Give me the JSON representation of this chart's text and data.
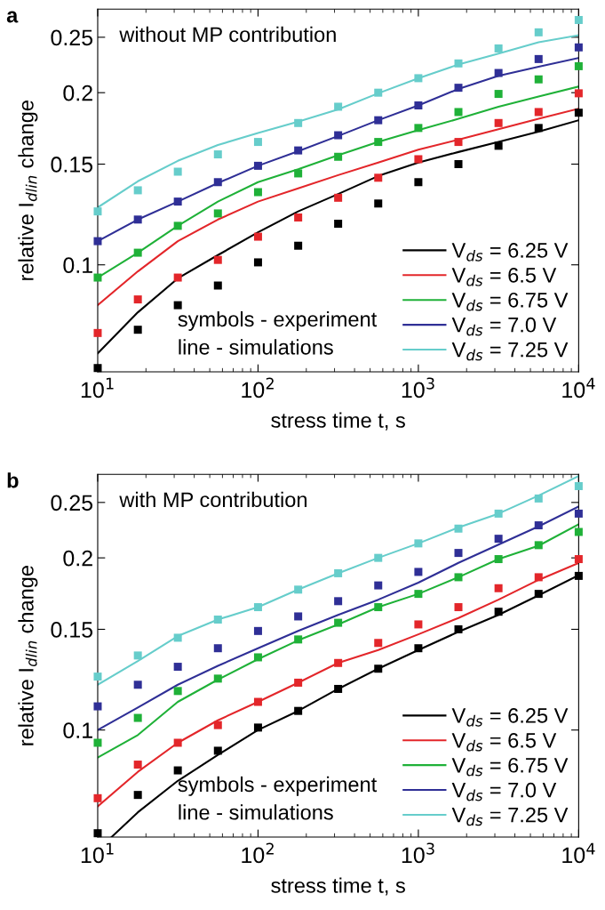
{
  "chart_data": [
    {
      "type": "line",
      "title": "a",
      "xlabel": "stress time t, s",
      "ylabel": "relative I$_{dlin}$ change",
      "log": "xy",
      "legend": "bottom right",
      "xlim": [
        10,
        10000
      ],
      "ylim": [
        0.065,
        0.28
      ],
      "xticks": [
        {
          "value": 10,
          "label": "10$^{1}$"
        },
        {
          "value": 100,
          "label": "10$^{2}$"
        },
        {
          "value": 1000,
          "label": "10$^{3}$"
        },
        {
          "value": 10000,
          "label": "10$^{4}$"
        }
      ],
      "yticks": [
        0.1,
        0.15,
        0.2,
        0.25
      ],
      "annotations": [
        "without MP contribution",
        "symbols - experiment",
        "line - simulations"
      ],
      "x": [
        10,
        17.8,
        31.6,
        56.2,
        100,
        178,
        316,
        562,
        1000,
        1778,
        3162,
        5623,
        10000
      ],
      "series": [
        {
          "name": "V$_{ds}$ = 6.25 V",
          "type": "line",
          "color": "#000000",
          "values": [
            0.07,
            0.0826,
            0.0947,
            0.104,
            0.114,
            0.124,
            0.133,
            0.143,
            0.151,
            0.1575,
            0.164,
            0.171,
            0.179
          ]
        },
        {
          "name": "V$_{ds}$ = 6.5 V",
          "type": "line",
          "color": "#e3262a",
          "values": [
            0.085,
            0.0974,
            0.11,
            0.12,
            0.129,
            0.136,
            0.1435,
            0.151,
            0.159,
            0.1655,
            0.1727,
            0.18,
            0.1875
          ]
        },
        {
          "name": "V$_{ds}$ = 6.75 V",
          "type": "line",
          "color": "#1fb138",
          "values": [
            0.095,
            0.105,
            0.117,
            0.129,
            0.1395,
            0.147,
            0.1555,
            0.164,
            0.172,
            0.18,
            0.189,
            0.197,
            0.205
          ]
        },
        {
          "name": "V$_{ds}$ = 7.0 V",
          "type": "line",
          "color": "#2f2f96",
          "values": [
            0.11,
            0.12,
            0.129,
            0.139,
            0.149,
            0.158,
            0.168,
            0.179,
            0.19,
            0.203,
            0.214,
            0.222,
            0.23
          ]
        },
        {
          "name": "V$_{ds}$ = 7.25 V",
          "type": "line",
          "color": "#66cdcb",
          "values": [
            0.126,
            0.14,
            0.152,
            0.162,
            0.17,
            0.178,
            0.187,
            0.1995,
            0.212,
            0.224,
            0.234,
            0.245,
            0.252
          ]
        },
        {
          "type": "scatter",
          "marker": "square",
          "color": "#000000",
          "values": [
            0.066,
            0.077,
            0.085,
            0.092,
            0.101,
            0.108,
            0.118,
            0.128,
            0.1395,
            0.15,
            0.1615,
            0.1735,
            0.1845
          ]
        },
        {
          "type": "scatter",
          "marker": "square",
          "color": "#e3262a",
          "values": [
            0.076,
            0.087,
            0.095,
            0.102,
            0.112,
            0.121,
            0.131,
            0.142,
            0.153,
            0.164,
            0.177,
            0.185,
            0.1995
          ]
        },
        {
          "type": "scatter",
          "marker": "square",
          "color": "#1fb138",
          "values": [
            0.095,
            0.105,
            0.117,
            0.123,
            0.134,
            0.1445,
            0.1545,
            0.164,
            0.1735,
            0.185,
            0.199,
            0.211,
            0.2225
          ]
        },
        {
          "type": "scatter",
          "marker": "square",
          "color": "#2f2f96",
          "values": [
            0.11,
            0.12,
            0.129,
            0.1395,
            0.149,
            0.1585,
            0.1685,
            0.179,
            0.19,
            0.204,
            0.2165,
            0.229,
            0.24
          ]
        },
        {
          "type": "scatter",
          "marker": "square",
          "color": "#66cdcb",
          "values": [
            0.124,
            0.135,
            0.1455,
            0.156,
            0.164,
            0.177,
            0.189,
            0.2,
            0.212,
            0.225,
            0.239,
            0.255,
            0.268
          ]
        }
      ]
    },
    {
      "type": "line",
      "title": "b",
      "xlabel": "stress time t, s",
      "ylabel": "relative I$_{dlin}$ change",
      "log": "xy",
      "legend": "bottom right",
      "xlim": [
        10,
        10000
      ],
      "ylim": [
        0.065,
        0.28
      ],
      "xticks": [
        {
          "value": 10,
          "label": "10$^{1}$"
        },
        {
          "value": 100,
          "label": "10$^{2}$"
        },
        {
          "value": 1000,
          "label": "10$^{3}$"
        },
        {
          "value": 10000,
          "label": "10$^{4}$"
        }
      ],
      "yticks": [
        0.1,
        0.15,
        0.2,
        0.25
      ],
      "annotations": [
        "with MP contribution",
        "symbols - experiment",
        "line - simulations"
      ],
      "x": [
        10,
        17.8,
        31.6,
        56.2,
        100,
        178,
        316,
        562,
        1000,
        1778,
        3162,
        5623,
        10000
      ],
      "series": [
        {
          "name": "V$_{ds}$ = 6.25 V",
          "type": "line",
          "color": "#000000",
          "x": [
            12.2,
            17.8,
            31.6,
            56.2,
            100,
            178,
            316,
            562,
            1000,
            1778,
            3162,
            5623,
            10000
          ],
          "values": [
            0.065,
            0.0718,
            0.0815,
            0.0905,
            0.1,
            0.108,
            0.118,
            0.128,
            0.138,
            0.1485,
            0.159,
            0.172,
            0.1865
          ]
        },
        {
          "name": "V$_{ds}$ = 6.5 V",
          "type": "line",
          "color": "#e3262a",
          "values": [
            0.0735,
            0.0845,
            0.095,
            0.104,
            0.112,
            0.121,
            0.131,
            0.138,
            0.147,
            0.157,
            0.169,
            0.183,
            0.196
          ]
        },
        {
          "name": "V$_{ds}$ = 6.75 V",
          "type": "line",
          "color": "#1fb138",
          "values": [
            0.0895,
            0.098,
            0.112,
            0.1225,
            0.133,
            0.1435,
            0.153,
            0.164,
            0.173,
            0.185,
            0.199,
            0.21,
            0.229
          ]
        },
        {
          "name": "V$_{ds}$ = 7.0 V",
          "type": "line",
          "color": "#2f2f96",
          "values": [
            0.1,
            0.1095,
            0.12,
            0.1295,
            0.139,
            0.149,
            0.159,
            0.169,
            0.181,
            0.196,
            0.211,
            0.227,
            0.246
          ]
        },
        {
          "name": "V$_{ds}$ = 7.25 V",
          "type": "line",
          "color": "#66cdcb",
          "values": [
            0.12,
            0.132,
            0.146,
            0.156,
            0.164,
            0.176,
            0.188,
            0.2,
            0.212,
            0.226,
            0.239,
            0.257,
            0.278
          ]
        },
        {
          "type": "scatter",
          "marker": "square",
          "color": "#000000",
          "values": [
            0.066,
            0.077,
            0.085,
            0.092,
            0.101,
            0.108,
            0.118,
            0.128,
            0.139,
            0.15,
            0.161,
            0.173,
            0.186
          ]
        },
        {
          "type": "scatter",
          "marker": "square",
          "color": "#e3262a",
          "values": [
            0.076,
            0.087,
            0.095,
            0.102,
            0.112,
            0.121,
            0.131,
            0.142,
            0.153,
            0.164,
            0.177,
            0.185,
            0.199
          ]
        },
        {
          "type": "scatter",
          "marker": "square",
          "color": "#1fb138",
          "values": [
            0.095,
            0.105,
            0.117,
            0.123,
            0.134,
            0.144,
            0.154,
            0.164,
            0.173,
            0.185,
            0.199,
            0.2105,
            0.222
          ]
        },
        {
          "type": "scatter",
          "marker": "square",
          "color": "#2f2f96",
          "values": [
            0.11,
            0.12,
            0.129,
            0.139,
            0.149,
            0.158,
            0.168,
            0.179,
            0.189,
            0.204,
            0.216,
            0.228,
            0.239
          ]
        },
        {
          "type": "scatter",
          "marker": "square",
          "color": "#66cdcb",
          "values": [
            0.124,
            0.135,
            0.145,
            0.156,
            0.164,
            0.176,
            0.188,
            0.2,
            0.212,
            0.225,
            0.239,
            0.254,
            0.267
          ]
        }
      ]
    }
  ]
}
